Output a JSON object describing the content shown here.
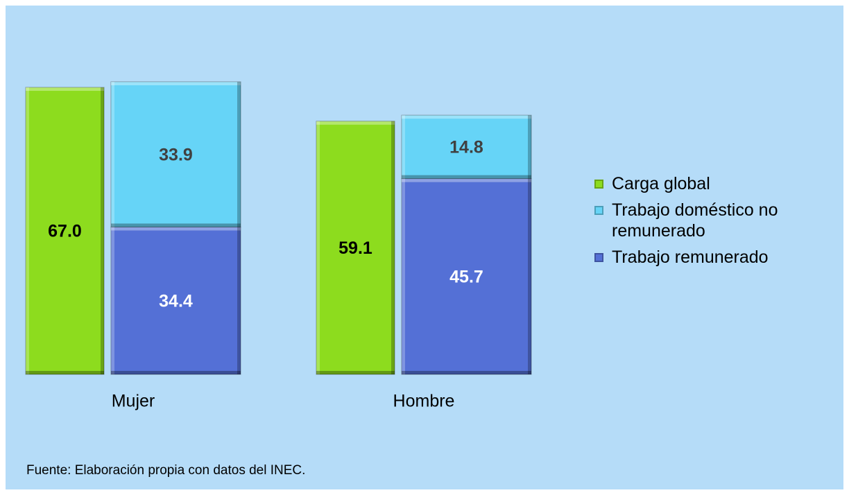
{
  "chart_data": {
    "type": "bar",
    "categories": [
      "Mujer",
      "Hombre"
    ],
    "series": [
      {
        "name": "Carga global",
        "color": "#8ddc1e",
        "label_color": "#000000",
        "values": [
          67.0,
          59.1
        ],
        "value_labels": [
          "67.0",
          "59.1"
        ]
      },
      {
        "name": "Trabajo doméstico no remunerado",
        "color": "#66d4f7",
        "label_color": "#404040",
        "values": [
          33.9,
          14.8
        ],
        "stack": "trabajo"
      },
      {
        "name": "Trabajo remunerado",
        "color": "#5470d6",
        "label_color": "#ffffff",
        "values": [
          34.4,
          45.7
        ],
        "stack": "trabajo"
      }
    ],
    "note": "Fuente: Elaboración propia con datos del INEC."
  }
}
